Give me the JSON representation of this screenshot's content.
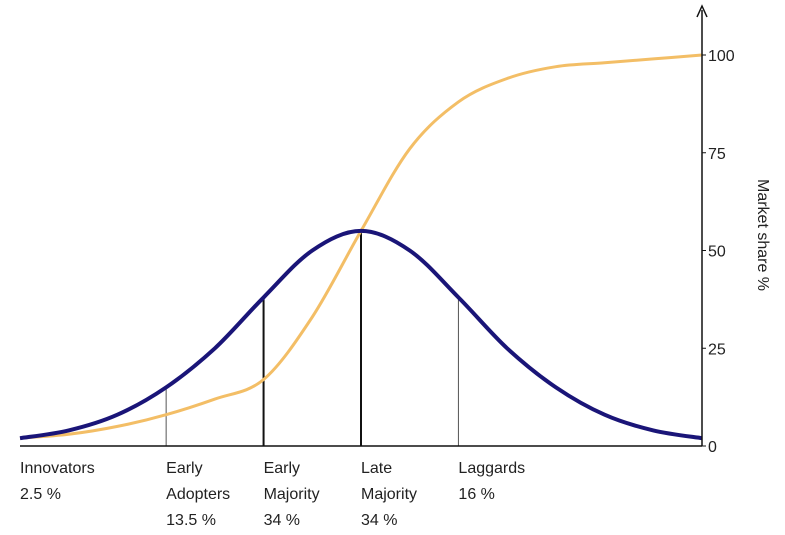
{
  "chart_data": {
    "type": "line",
    "title": "",
    "ylabel": "Market share %",
    "ylim": [
      0,
      100
    ],
    "y_ticks": [
      0,
      25,
      50,
      75,
      100
    ],
    "grid": false,
    "x_range_sd": [
      -3.5,
      3.5
    ],
    "series": [
      {
        "description": "adoption bell curve (navy)",
        "color": "#1a1578",
        "x": [
          -3.5,
          -3.0,
          -2.5,
          -2.0,
          -1.5,
          -1.0,
          -0.5,
          0.0,
          0.5,
          1.0,
          1.5,
          2.0,
          2.5,
          3.0,
          3.5
        ],
        "values": [
          2,
          4,
          8,
          15,
          25,
          38,
          50,
          55,
          50,
          38,
          25,
          15,
          8,
          4,
          2
        ]
      },
      {
        "description": "cumulative market share S-curve (orange)",
        "color": "#f3be66",
        "x": [
          -3.5,
          -3.0,
          -2.5,
          -2.0,
          -1.5,
          -1.0,
          -0.5,
          0.0,
          0.5,
          1.0,
          1.5,
          2.0,
          2.5,
          3.0,
          3.5
        ],
        "values": [
          2,
          3,
          5,
          8,
          12,
          17,
          33,
          55,
          76,
          88,
          94,
          97,
          98,
          99,
          100
        ]
      }
    ],
    "divisions": [
      -2,
      -1,
      0,
      1
    ],
    "categories": [
      {
        "lines": [
          "Innovators",
          "2.5 %"
        ]
      },
      {
        "lines": [
          "Early",
          "Adopters",
          "13.5 %"
        ]
      },
      {
        "lines": [
          "Early",
          "Majority",
          "34 %"
        ]
      },
      {
        "lines": [
          "Late",
          "Majority",
          "34 %"
        ]
      },
      {
        "lines": [
          "Laggards",
          "16 %"
        ]
      }
    ]
  }
}
